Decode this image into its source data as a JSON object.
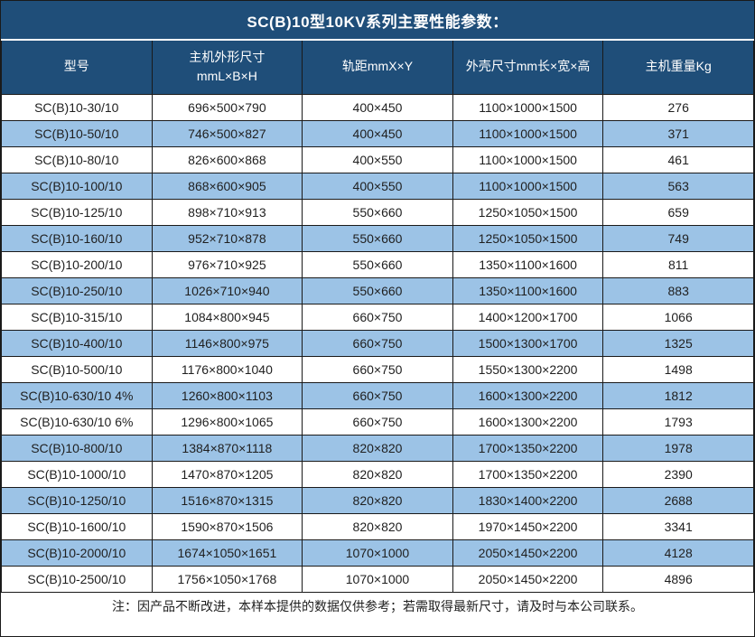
{
  "title": "SC(B)10型10KV系列主要性能参数：",
  "footer_note": "注：因产品不断改进，本样本提供的数据仅供参考；若需取得最新尺寸，请及时与本公司联系。",
  "colors": {
    "header_bg": "#1F4E79",
    "header_text": "#FFFFFF",
    "row_bg": "#FFFFFF",
    "row_alt_bg": "#9CC3E6",
    "border": "#1A1A1A",
    "text": "#1F1F1F"
  },
  "chart_data": {
    "type": "table",
    "title": "SC(B)10型10KV系列主要性能参数：",
    "columns": [
      "型号",
      "主机外形尺寸\nmmL×B×H",
      "轨距mmX×Y",
      "外壳尺寸mm长×宽×高",
      "主机重量Kg"
    ],
    "rows": [
      [
        "SC(B)10-30/10",
        "696×500×790",
        "400×450",
        "1100×1000×1500",
        "276"
      ],
      [
        "SC(B)10-50/10",
        "746×500×827",
        "400×450",
        "1100×1000×1500",
        "371"
      ],
      [
        "SC(B)10-80/10",
        "826×600×868",
        "400×550",
        "1100×1000×1500",
        "461"
      ],
      [
        "SC(B)10-100/10",
        "868×600×905",
        "400×550",
        "1100×1000×1500",
        "563"
      ],
      [
        "SC(B)10-125/10",
        "898×710×913",
        "550×660",
        "1250×1050×1500",
        "659"
      ],
      [
        "SC(B)10-160/10",
        "952×710×878",
        "550×660",
        "1250×1050×1500",
        "749"
      ],
      [
        "SC(B)10-200/10",
        "976×710×925",
        "550×660",
        "1350×1100×1600",
        "811"
      ],
      [
        "SC(B)10-250/10",
        "1026×710×940",
        "550×660",
        "1350×1100×1600",
        "883"
      ],
      [
        "SC(B)10-315/10",
        "1084×800×945",
        "660×750",
        "1400×1200×1700",
        "1066"
      ],
      [
        "SC(B)10-400/10",
        "1146×800×975",
        "660×750",
        "1500×1300×1700",
        "1325"
      ],
      [
        "SC(B)10-500/10",
        "1176×800×1040",
        "660×750",
        "1550×1300×2200",
        "1498"
      ],
      [
        "SC(B)10-630/10 4%",
        "1260×800×1103",
        "660×750",
        "1600×1300×2200",
        "1812"
      ],
      [
        "SC(B)10-630/10 6%",
        "1296×800×1065",
        "660×750",
        "1600×1300×2200",
        "1793"
      ],
      [
        "SC(B)10-800/10",
        "1384×870×1118",
        "820×820",
        "1700×1350×2200",
        "1978"
      ],
      [
        "SC(B)10-1000/10",
        "1470×870×1205",
        "820×820",
        "1700×1350×2200",
        "2390"
      ],
      [
        "SC(B)10-1250/10",
        "1516×870×1315",
        "820×820",
        "1830×1400×2200",
        "2688"
      ],
      [
        "SC(B)10-1600/10",
        "1590×870×1506",
        "820×820",
        "1970×1450×2200",
        "3341"
      ],
      [
        "SC(B)10-2000/10",
        "1674×1050×1651",
        "1070×1000",
        "2050×1450×2200",
        "4128"
      ],
      [
        "SC(B)10-2500/10",
        "1756×1050×1768",
        "1070×1000",
        "2050×1450×2200",
        "4896"
      ]
    ]
  }
}
